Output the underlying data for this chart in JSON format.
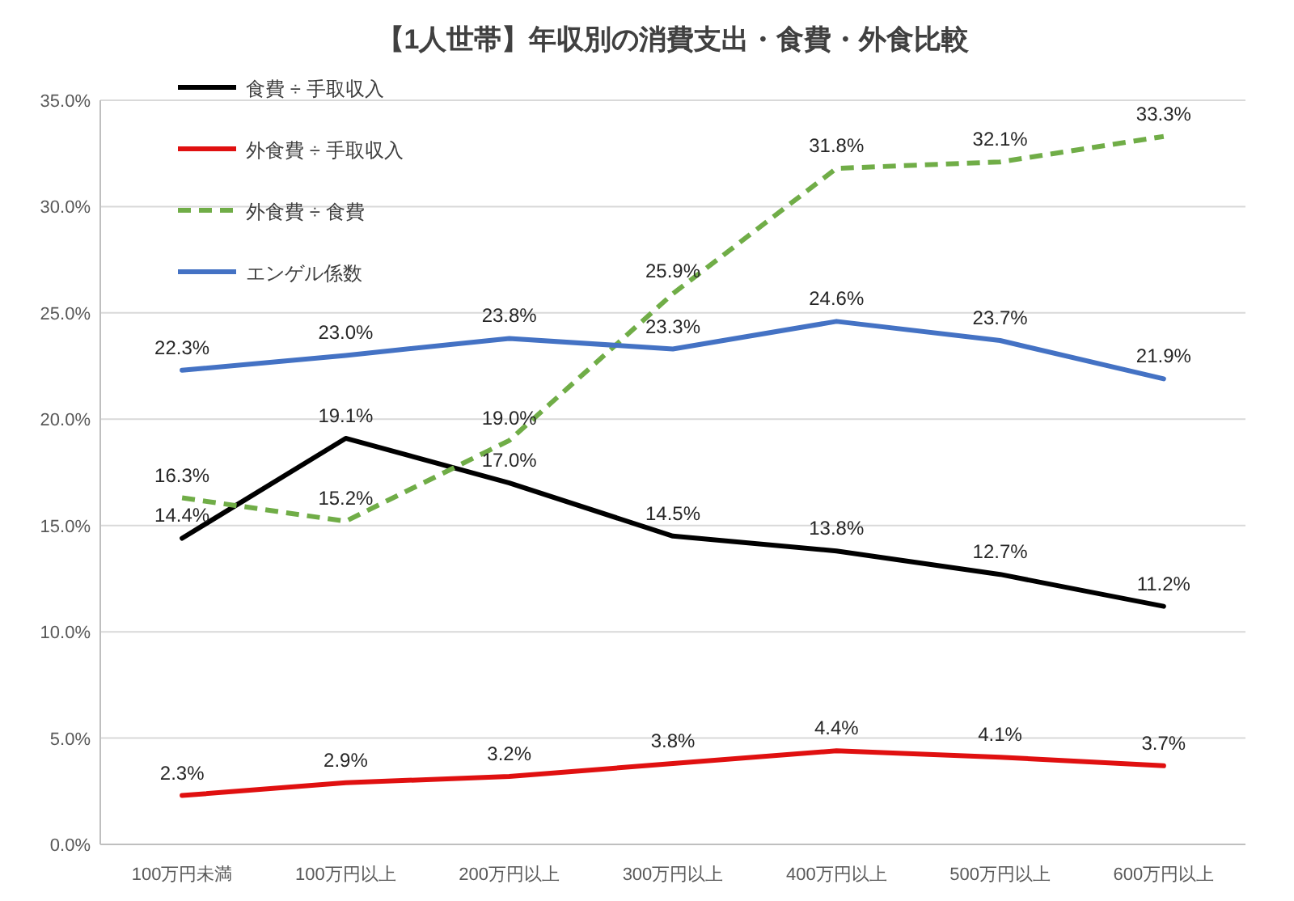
{
  "chart_data": {
    "type": "line",
    "title": "【1人世帯】年収別の消費支出・食費・外食比較",
    "categories": [
      "100万円未満",
      "100万円以上",
      "200万円以上",
      "300万円以上",
      "400万円以上",
      "500万円以上",
      "600万円以上"
    ],
    "ylim": [
      0,
      35
    ],
    "yticks": [
      {
        "value": 0,
        "label": "0.0%"
      },
      {
        "value": 5,
        "label": "5.0%"
      },
      {
        "value": 10,
        "label": "10.0%"
      },
      {
        "value": 15,
        "label": "15.0%"
      },
      {
        "value": 20,
        "label": "20.0%"
      },
      {
        "value": 25,
        "label": "25.0%"
      },
      {
        "value": 30,
        "label": "30.0%"
      },
      {
        "value": 35,
        "label": "35.0%"
      }
    ],
    "grid": "y",
    "legend": "top left",
    "series": [
      {
        "name": "食費 ÷ 手取収入",
        "color": "#000000",
        "line_style": "solid",
        "values": [
          14.4,
          19.1,
          17.0,
          14.5,
          13.8,
          12.7,
          11.2
        ],
        "value_labels": [
          "14.4%",
          "19.1%",
          "17.0%",
          "14.5%",
          "13.8%",
          "12.7%",
          "11.2%"
        ]
      },
      {
        "name": "外食費 ÷ 手取収入",
        "color": "#e01010",
        "line_style": "solid",
        "values": [
          2.3,
          2.9,
          3.2,
          3.8,
          4.4,
          4.1,
          3.7
        ],
        "value_labels": [
          "2.3%",
          "2.9%",
          "3.2%",
          "3.8%",
          "4.4%",
          "4.1%",
          "3.7%"
        ]
      },
      {
        "name": "外食費 ÷ 食費",
        "color": "#70ad47",
        "line_style": "dashed",
        "values": [
          16.3,
          15.2,
          19.0,
          25.9,
          31.8,
          32.1,
          33.3
        ],
        "value_labels": [
          "16.3%",
          "15.2%",
          "19.0%",
          "25.9%",
          "31.8%",
          "32.1%",
          "33.3%"
        ]
      },
      {
        "name": "エンゲル係数",
        "color": "#4472c4",
        "line_style": "solid",
        "values": [
          22.3,
          23.0,
          23.8,
          23.3,
          24.6,
          23.7,
          21.9
        ],
        "value_labels": [
          "22.3%",
          "23.0%",
          "23.8%",
          "23.3%",
          "24.6%",
          "23.7%",
          "21.9%"
        ]
      }
    ]
  }
}
